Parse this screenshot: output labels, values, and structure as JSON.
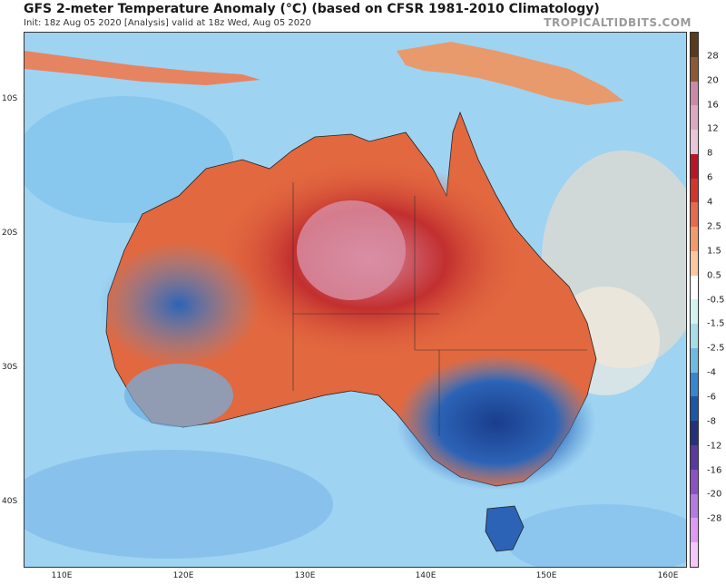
{
  "header": {
    "title": "GFS 2-meter Temperature Anomaly (°C) (based on CFSR 1981-2010 Climatology)",
    "subtitle": "Init: 18z Aug 05 2020   [Analysis]   valid at 18z Wed, Aug 05 2020",
    "credit": "TROPICALTIDBITS.COM"
  },
  "axes": {
    "lat_labels": [
      "10S",
      "20S",
      "30S",
      "40S"
    ],
    "lon_labels": [
      "110E",
      "120E",
      "130E",
      "140E",
      "150E",
      "160E"
    ]
  },
  "colorbar": {
    "labels": [
      "28",
      "20",
      "16",
      "12",
      "8",
      "6",
      "4",
      "2.5",
      "1.5",
      "0.5",
      "-0.5",
      "-1.5",
      "-2.5",
      "-4",
      "-6",
      "-8",
      "-12",
      "-16",
      "-20",
      "-28"
    ],
    "colors": [
      "#5a3a1e",
      "#8a5a38",
      "#c98aa6",
      "#dda8c2",
      "#e9c6d6",
      "#b8172a",
      "#d0352e",
      "#e56a4e",
      "#f09a6e",
      "#f7c8a2",
      "#ffffff",
      "#d2f3f0",
      "#a8dde6",
      "#72b9e2",
      "#3a85cf",
      "#1f56a5",
      "#24327a",
      "#5b3a9e",
      "#8a52c0",
      "#b37be0",
      "#de9af2",
      "#f4c7f9"
    ]
  },
  "colors": {
    "ocean": "#9fd3f2",
    "land_warm": "#e2683f",
    "land_hot": "#c42a2a",
    "land_cool": "#4a8fd4",
    "land_cold": "#1f56a5"
  }
}
